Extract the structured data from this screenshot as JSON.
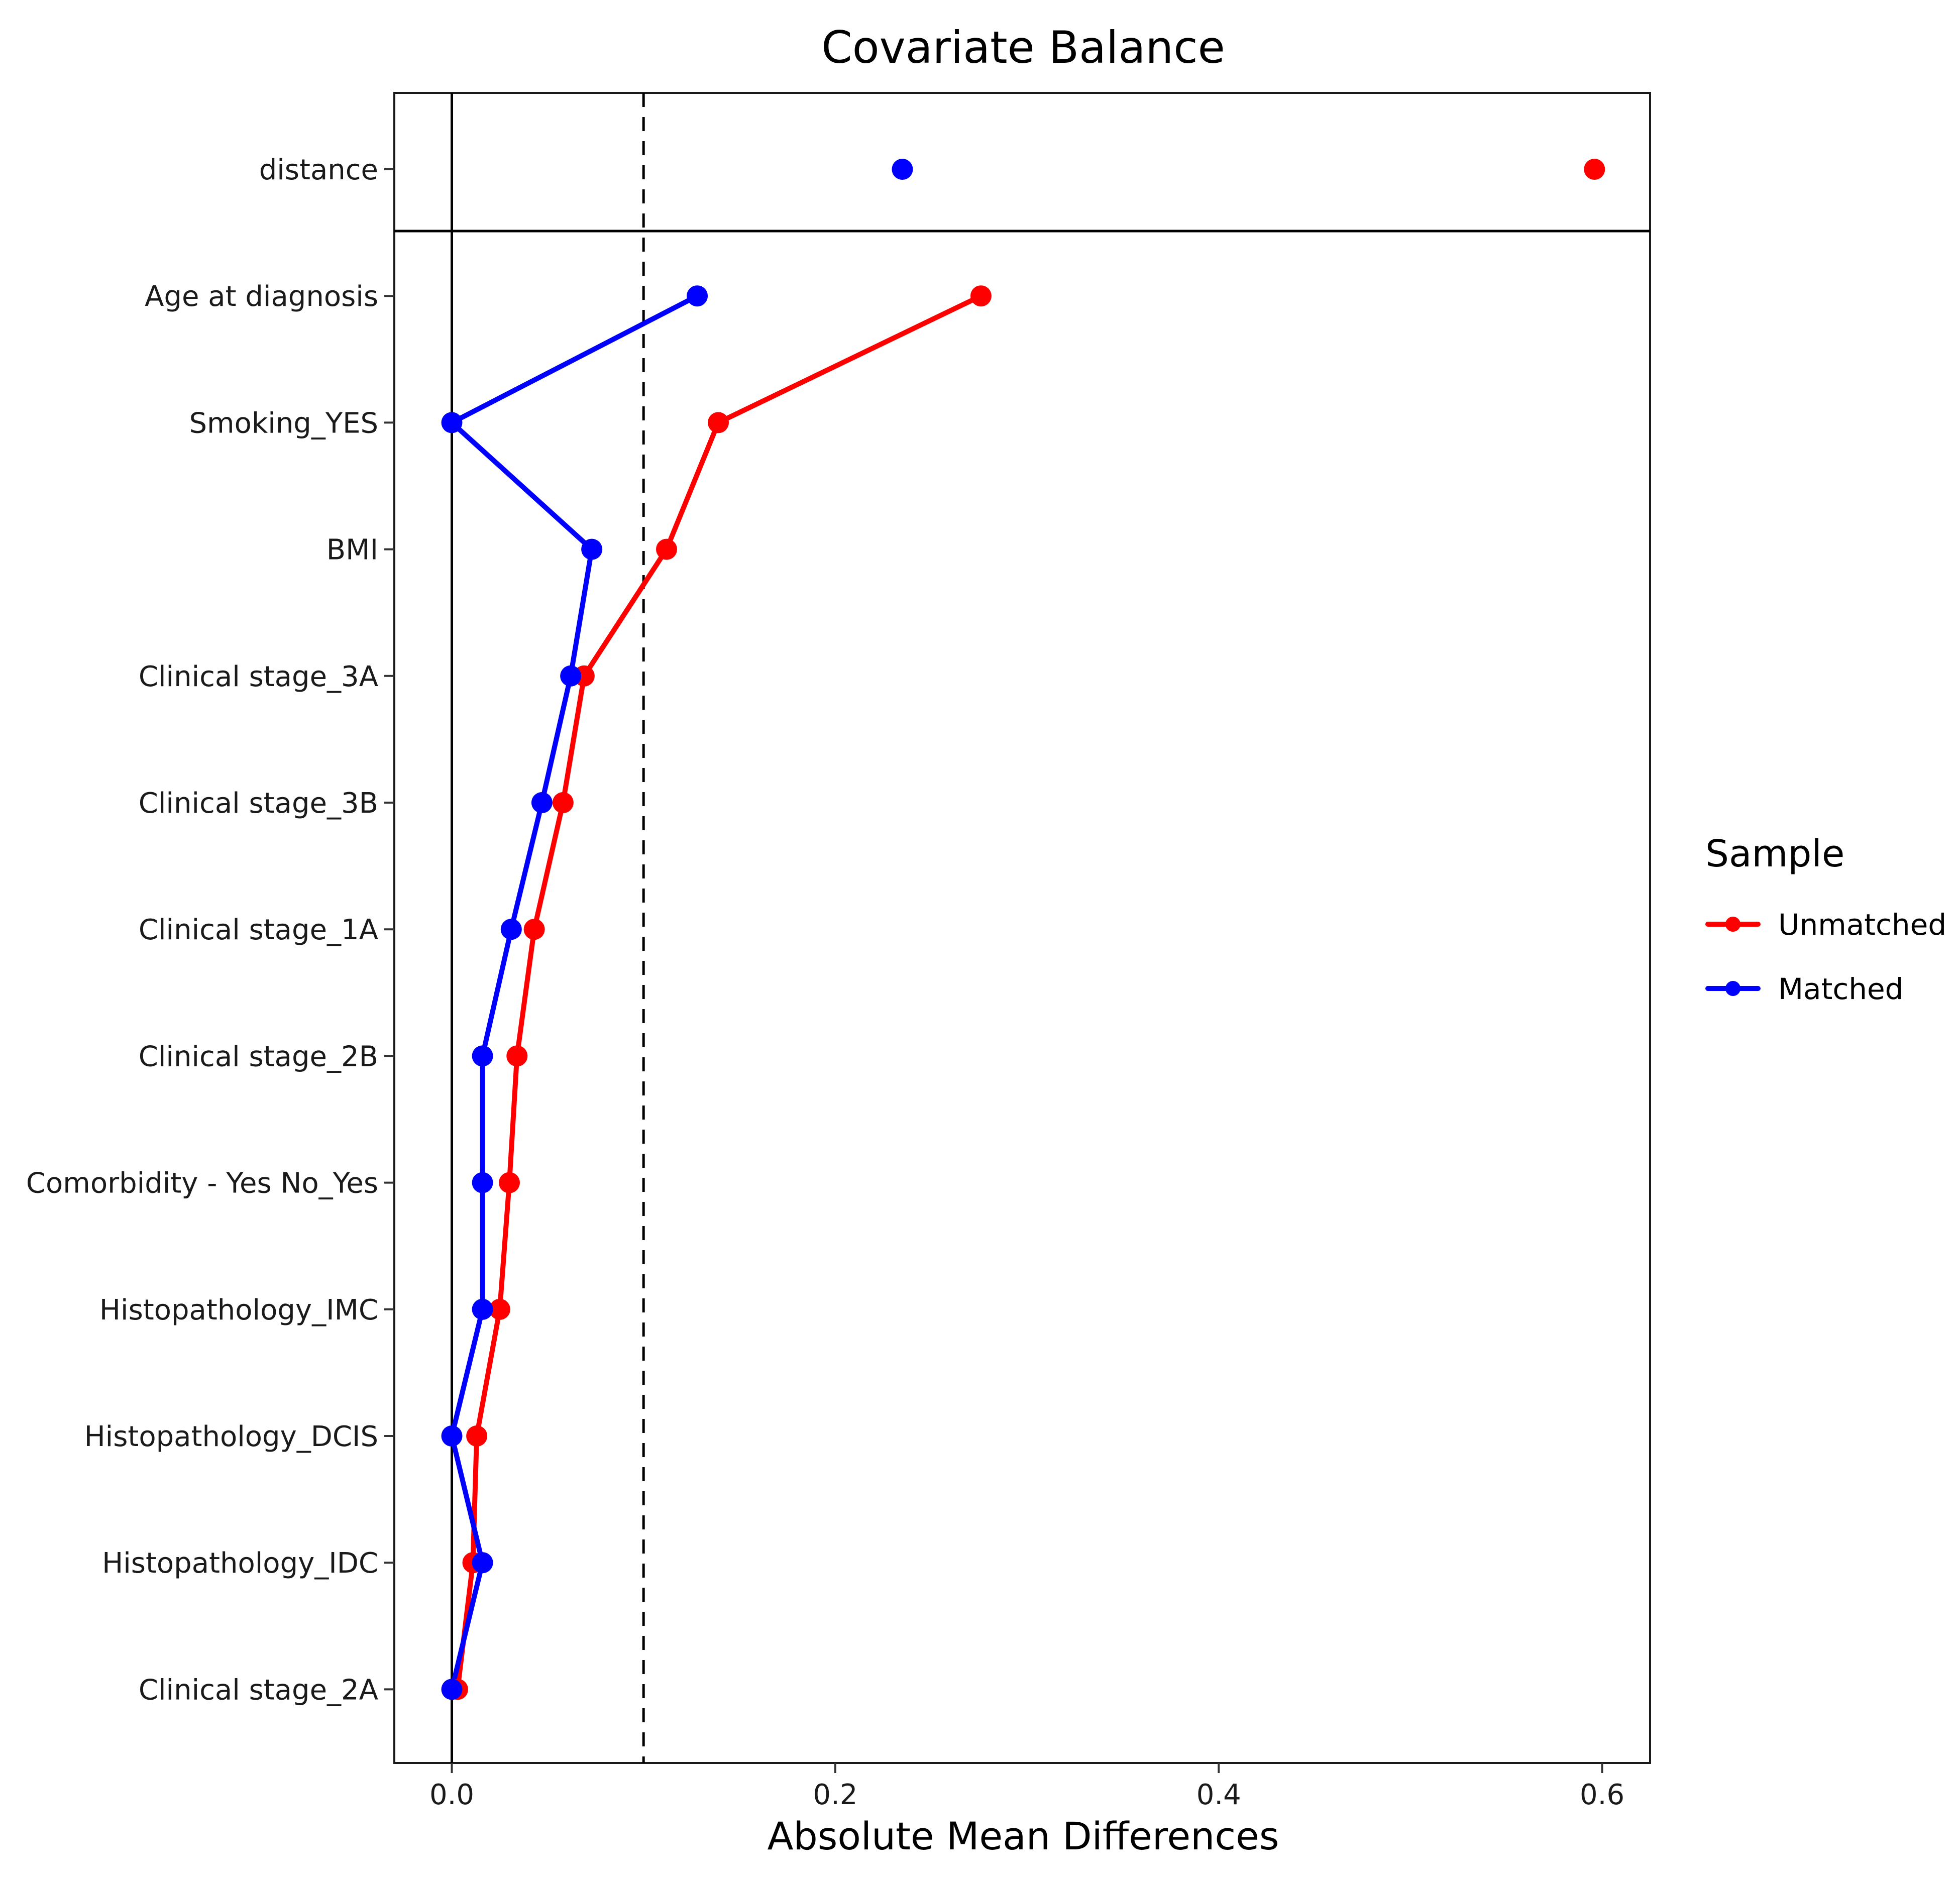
{
  "chart_data": {
    "type": "line",
    "title": "Covariate Balance",
    "xlabel": "Absolute Mean Differences",
    "ylabel": "",
    "xlim": [
      -0.03,
      0.625
    ],
    "xticks": [
      0.0,
      0.2,
      0.4,
      0.6
    ],
    "xtick_labels": [
      "0.0",
      "0.2",
      "0.4",
      "0.6"
    ],
    "threshold": 0.1,
    "grid": false,
    "legend": {
      "title": "Sample",
      "position": "right"
    },
    "top_row": "distance",
    "categories": [
      "distance",
      "Age at diagnosis",
      "Smoking_YES",
      "BMI",
      "Clinical stage_3A",
      "Clinical stage_3B",
      "Clinical stage_1A",
      "Clinical stage_2B",
      "Comorbidity - Yes No_Yes",
      "Histopathology_IMC",
      "Histopathology_DCIS",
      "Histopathology_IDC",
      "Clinical stage_2A"
    ],
    "series": [
      {
        "name": "Unmatched",
        "color": "#ff0000",
        "values": [
          0.596,
          0.276,
          0.139,
          0.112,
          0.069,
          0.058,
          0.043,
          0.034,
          0.03,
          0.025,
          0.013,
          0.011,
          0.003
        ]
      },
      {
        "name": "Matched",
        "color": "#0000ff",
        "values": [
          0.235,
          0.128,
          0.0,
          0.073,
          0.062,
          0.047,
          0.031,
          0.016,
          0.016,
          0.016,
          0.0,
          0.016,
          0.0
        ]
      }
    ]
  }
}
